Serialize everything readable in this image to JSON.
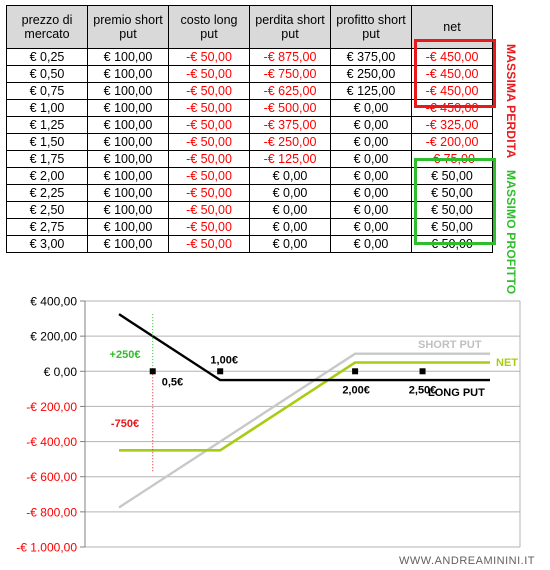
{
  "table": {
    "headers": [
      "prezzo di\nmercato",
      "premio short\nput",
      "costo long\nput",
      "perdita short\nput",
      "profitto short\nput",
      "net"
    ],
    "rows": [
      [
        "€ 0,25",
        "€ 100,00",
        "-€ 50,00",
        "-€ 875,00",
        "€ 375,00",
        "-€ 450,00"
      ],
      [
        "€ 0,50",
        "€ 100,00",
        "-€ 50,00",
        "-€ 750,00",
        "€ 250,00",
        "-€ 450,00"
      ],
      [
        "€ 0,75",
        "€ 100,00",
        "-€ 50,00",
        "-€ 625,00",
        "€ 125,00",
        "-€ 450,00"
      ],
      [
        "€ 1,00",
        "€ 100,00",
        "-€ 50,00",
        "-€ 500,00",
        "€ 0,00",
        "-€ 450,00"
      ],
      [
        "€ 1,25",
        "€ 100,00",
        "-€ 50,00",
        "-€ 375,00",
        "€ 0,00",
        "-€ 325,00"
      ],
      [
        "€ 1,50",
        "€ 100,00",
        "-€ 50,00",
        "-€ 250,00",
        "€ 0,00",
        "-€ 200,00"
      ],
      [
        "€ 1,75",
        "€ 100,00",
        "-€ 50,00",
        "-€ 125,00",
        "€ 0,00",
        "-€ 75,00"
      ],
      [
        "€ 2,00",
        "€ 100,00",
        "-€ 50,00",
        "€ 0,00",
        "€ 0,00",
        "€ 50,00"
      ],
      [
        "€ 2,25",
        "€ 100,00",
        "-€ 50,00",
        "€ 0,00",
        "€ 0,00",
        "€ 50,00"
      ],
      [
        "€ 2,50",
        "€ 100,00",
        "-€ 50,00",
        "€ 0,00",
        "€ 0,00",
        "€ 50,00"
      ],
      [
        "€ 2,75",
        "€ 100,00",
        "-€ 50,00",
        "€ 0,00",
        "€ 0,00",
        "€ 50,00"
      ],
      [
        "€ 3,00",
        "€ 100,00",
        "-€ 50,00",
        "€ 0,00",
        "€ 0,00",
        "€ 50,00"
      ]
    ]
  },
  "labels": {
    "max_loss": "MASSIMA PERDITA",
    "max_profit": "MASSIMO PROFITTO"
  },
  "colors": {
    "red": "#e8191d",
    "green": "#2fbd2b",
    "short_put": "#c8c8c8",
    "net": "#a8cc14",
    "long_put": "#000000"
  },
  "chart_data": {
    "type": "line",
    "x": [
      0.25,
      1.0,
      1.25,
      1.5,
      1.75,
      2.0,
      3.0
    ],
    "ylim": [
      -1000,
      400
    ],
    "yticks": [
      400,
      200,
      0,
      -200,
      -400,
      -600,
      -800,
      -1000
    ],
    "ytick_labels": [
      "€ 400,00",
      "€ 200,00",
      "€ 0,00",
      "-€ 200,00",
      "-€ 400,00",
      "-€ 600,00",
      "-€ 800,00",
      "-€ 1.000,00"
    ],
    "grid": true,
    "series": [
      {
        "name": "SHORT PUT",
        "values": [
          -775,
          -400,
          -275,
          -150,
          -25,
          100,
          100
        ]
      },
      {
        "name": "NET",
        "values": [
          -450,
          -450,
          -325,
          -200,
          -75,
          50,
          50
        ]
      },
      {
        "name": "LONG PUT",
        "values": [
          325,
          -50,
          -50,
          -50,
          -50,
          -50,
          -50
        ]
      }
    ],
    "points": [
      {
        "x": 0.5,
        "y": 0,
        "label": "0,5€"
      },
      {
        "x": 1.0,
        "y": 0,
        "label": "1,00€"
      },
      {
        "x": 2.0,
        "y": 0,
        "label": "2,00€"
      },
      {
        "x": 2.5,
        "y": 0,
        "label": "2,50€"
      }
    ],
    "annotations": [
      {
        "text": "+250€",
        "color": "#2fbd2b"
      },
      {
        "text": "-750€",
        "color": "#e8191d"
      }
    ],
    "watermark": "WWW.ANDREAMININI.IT"
  }
}
